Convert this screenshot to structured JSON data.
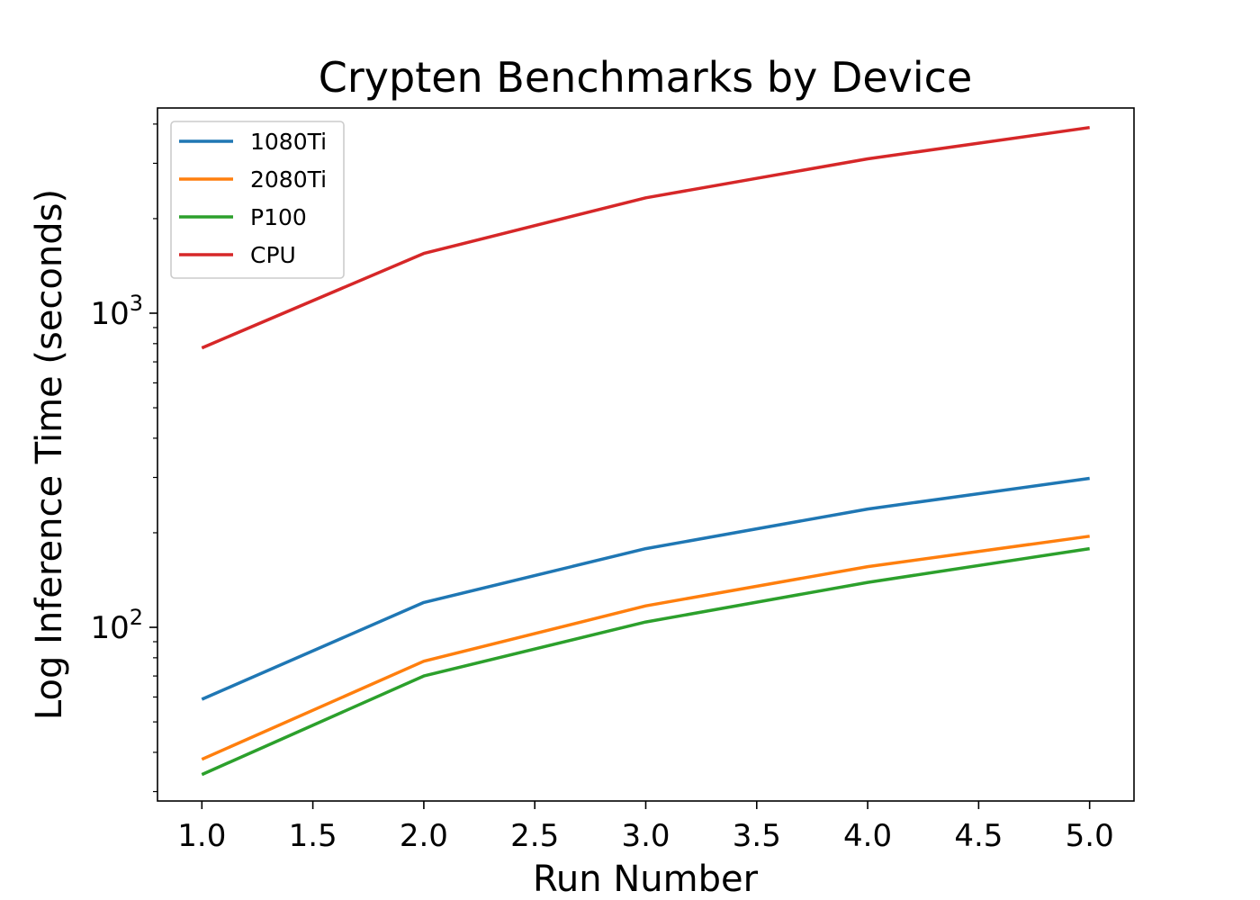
{
  "chart_data": {
    "type": "line",
    "title": "Crypten Benchmarks by Device",
    "xlabel": "Run Number",
    "ylabel": "Log Inference Time (seconds)",
    "yscale": "log",
    "xlim": [
      0.8,
      5.2
    ],
    "ylim": [
      28,
      4500
    ],
    "x": [
      1.0,
      2.0,
      3.0,
      4.0,
      5.0
    ],
    "xticks": [
      1.0,
      1.5,
      2.0,
      2.5,
      3.0,
      3.5,
      4.0,
      4.5,
      5.0
    ],
    "xtick_labels": [
      "1.0",
      "1.5",
      "2.0",
      "2.5",
      "3.0",
      "3.5",
      "4.0",
      "4.5",
      "5.0"
    ],
    "yticks_major": [
      {
        "value": 100,
        "base": "10",
        "exp": "2"
      },
      {
        "value": 1000,
        "base": "10",
        "exp": "3"
      }
    ],
    "grid": false,
    "legend_position": "top-left",
    "series": [
      {
        "name": "1080Ti",
        "color": "#1f77b4",
        "values": [
          59,
          120,
          178,
          238,
          298
        ]
      },
      {
        "name": "2080Ti",
        "color": "#ff7f0e",
        "values": [
          38,
          78,
          117,
          156,
          195
        ]
      },
      {
        "name": "P100",
        "color": "#2ca02c",
        "values": [
          34,
          70,
          104,
          139,
          178
        ]
      },
      {
        "name": "CPU",
        "color": "#d62728",
        "values": [
          775,
          1550,
          2330,
          3100,
          3900
        ]
      }
    ]
  }
}
